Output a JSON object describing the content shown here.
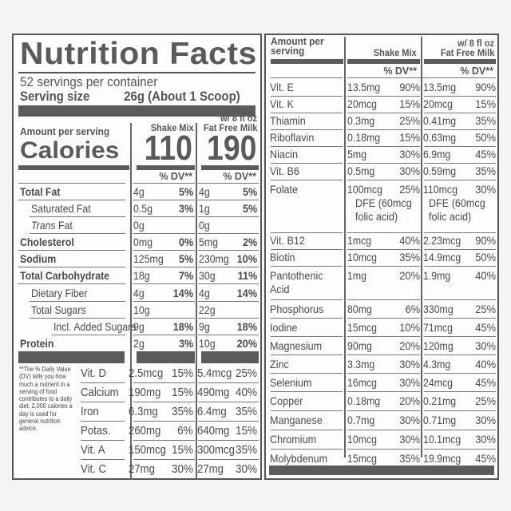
{
  "label": {
    "title": "Nutrition Facts",
    "servings_per_container": "52 servings per container",
    "serving_size_label": "Serving size",
    "serving_size_value": "26g (About 1 Scoop)",
    "amount_per_serving": "Amount per serving",
    "calories_label": "Calories",
    "columns": {
      "shake_mix": "Shake Mix",
      "milk_line1": "w/ 8 fl oz",
      "milk_line2": "Fat Free Milk",
      "dv_header": "% DV**"
    },
    "calories": {
      "shake_mix": "110",
      "with_milk": "190"
    },
    "macros": [
      {
        "name": "Total Fat",
        "bold": true,
        "indent": 0,
        "mix_amt": "4g",
        "mix_dv": "5%",
        "milk_amt": "4g",
        "milk_dv": "5%"
      },
      {
        "name": "Saturated Fat",
        "bold": false,
        "indent": 1,
        "mix_amt": "0.5g",
        "mix_dv": "3%",
        "milk_amt": "1g",
        "milk_dv": "5%"
      },
      {
        "name_italic": "Trans",
        "name": " Fat",
        "bold": false,
        "indent": 1,
        "mix_amt": "0g",
        "mix_dv": "",
        "milk_amt": "0g",
        "milk_dv": ""
      },
      {
        "name": "Cholesterol",
        "bold": true,
        "indent": 0,
        "mix_amt": "0mg",
        "mix_dv": "0%",
        "milk_amt": "5mg",
        "milk_dv": "2%"
      },
      {
        "name": "Sodium",
        "bold": true,
        "indent": 0,
        "mix_amt": "125mg",
        "mix_dv": "5%",
        "milk_amt": "230mg",
        "milk_dv": "10%"
      },
      {
        "name": "Total Carbohydrate",
        "bold": true,
        "indent": 0,
        "mix_amt": "18g",
        "mix_dv": "7%",
        "milk_amt": "30g",
        "milk_dv": "11%"
      },
      {
        "name": "Dietary Fiber",
        "bold": false,
        "indent": 1,
        "mix_amt": "4g",
        "mix_dv": "14%",
        "milk_amt": "4g",
        "milk_dv": "14%"
      },
      {
        "name": "Total Sugars",
        "bold": false,
        "indent": 1,
        "mix_amt": "10g",
        "mix_dv": "",
        "milk_amt": "22g",
        "milk_dv": ""
      },
      {
        "name": "Incl. Added Sugars",
        "bold": false,
        "indent": 2,
        "mix_amt": "9g",
        "mix_dv": "18%",
        "milk_amt": "9g",
        "milk_dv": "18%"
      },
      {
        "name": "Protein",
        "bold": true,
        "indent": 0,
        "mix_amt": "2g",
        "mix_dv": "3%",
        "milk_amt": "10g",
        "milk_dv": "20%"
      }
    ],
    "footnote": "**The % Daily Value (DV) tells you how much a nutrient in a serving of food contributes to a daily diet. 2,000 calories a day is used for general nutrition advice.",
    "vitamins_left": [
      {
        "name": "Vit. D",
        "mix_amt": "2.5mcg",
        "mix_dv": "15%",
        "milk_amt": "5.4mcg",
        "milk_dv": "25%"
      },
      {
        "name": "Calcium",
        "mix_amt": "190mg",
        "mix_dv": "15%",
        "milk_amt": "490mg",
        "milk_dv": "40%"
      },
      {
        "name": "Iron",
        "mix_amt": "6.3mg",
        "mix_dv": "35%",
        "milk_amt": "6.4mg",
        "milk_dv": "35%"
      },
      {
        "name": "Potas.",
        "mix_amt": "260mg",
        "mix_dv": "6%",
        "milk_amt": "640mg",
        "milk_dv": "15%"
      },
      {
        "name": "Vit. A",
        "mix_amt": "150mcg",
        "mix_dv": "15%",
        "milk_amt": "300mcg",
        "milk_dv": "35%"
      },
      {
        "name": "Vit. C",
        "mix_amt": "27mg",
        "mix_dv": "30%",
        "milk_amt": "27mg",
        "milk_dv": "30%"
      }
    ],
    "right_header": {
      "amount_per_line1": "Amount per",
      "amount_per_line2": "serving",
      "shake_mix": "Shake Mix",
      "milk_line1": "w/ 8 fl oz",
      "milk_line2": "Fat Free Milk",
      "dv_header": "% DV**"
    },
    "vitamins_right": [
      {
        "name": "Vit. E",
        "mix_amt": "13.5mg",
        "mix_dv": "90%",
        "milk_amt": "13.5mg",
        "milk_dv": "90%"
      },
      {
        "name": "Vit. K",
        "mix_amt": "20mcg",
        "mix_dv": "15%",
        "milk_amt": "20mcg",
        "milk_dv": "15%"
      },
      {
        "name": "Thiamin",
        "mix_amt": "0.3mg",
        "mix_dv": "25%",
        "milk_amt": "0.41mg",
        "milk_dv": "35%"
      },
      {
        "name": "Riboflavin",
        "mix_amt": "0.18mg",
        "mix_dv": "15%",
        "milk_amt": "0.63mg",
        "milk_dv": "50%"
      },
      {
        "name": "Niacin",
        "mix_amt": "5mg",
        "mix_dv": "30%",
        "milk_amt": "6.9mg",
        "milk_dv": "45%"
      },
      {
        "name": "Vit. B6",
        "mix_amt": "0.5mg",
        "mix_dv": "30%",
        "milk_amt": "0.59mg",
        "milk_dv": "35%"
      },
      {
        "name": "Folate",
        "mix_amt": "100mcg",
        "mix_sub1": "DFE (60mcg",
        "mix_sub2": "folic acid)",
        "mix_dv": "25%",
        "milk_amt": "110mcg",
        "milk_sub1": "DFE (60mcg",
        "milk_sub2": "folic acid)",
        "milk_dv": "30%"
      },
      {
        "name": "Vit. B12",
        "mix_amt": "1mcg",
        "mix_dv": "40%",
        "milk_amt": "2.23mcg",
        "milk_dv": "90%"
      },
      {
        "name": "Biotin",
        "mix_amt": "10mcg",
        "mix_dv": "35%",
        "milk_amt": "14.9mcg",
        "milk_dv": "50%"
      },
      {
        "name": "Pantothenic",
        "name2": "Acid",
        "mix_amt": "1mg",
        "mix_dv": "20%",
        "milk_amt": "1.9mg",
        "milk_dv": "40%"
      },
      {
        "name": "Phosphorus",
        "mix_amt": "80mg",
        "mix_dv": "6%",
        "milk_amt": "330mg",
        "milk_dv": "25%"
      },
      {
        "name": "Iodine",
        "mix_amt": "15mcg",
        "mix_dv": "10%",
        "milk_amt": "71mcg",
        "milk_dv": "45%"
      },
      {
        "name": "Magnesium",
        "mix_amt": "90mg",
        "mix_dv": "20%",
        "milk_amt": "120mg",
        "milk_dv": "30%"
      },
      {
        "name": "Zinc",
        "mix_amt": "3.3mg",
        "mix_dv": "30%",
        "milk_amt": "4.3mg",
        "milk_dv": "40%"
      },
      {
        "name": "Selenium",
        "mix_amt": "16mcg",
        "mix_dv": "30%",
        "milk_amt": "24mcg",
        "milk_dv": "45%"
      },
      {
        "name": "Copper",
        "mix_amt": "0.18mg",
        "mix_dv": "20%",
        "milk_amt": "0.21mg",
        "milk_dv": "25%"
      },
      {
        "name": "Manganese",
        "mix_amt": "0.7mg",
        "mix_dv": "30%",
        "milk_amt": "0.71mg",
        "milk_dv": "30%"
      },
      {
        "name": "Chromium",
        "mix_amt": "10mcg",
        "mix_dv": "30%",
        "milk_amt": "10.1mcg",
        "milk_dv": "30%"
      },
      {
        "name": "Molybdenum",
        "mix_amt": "15mcg",
        "mix_dv": "35%",
        "milk_amt": "19.9mcg",
        "milk_dv": "45%"
      }
    ]
  }
}
